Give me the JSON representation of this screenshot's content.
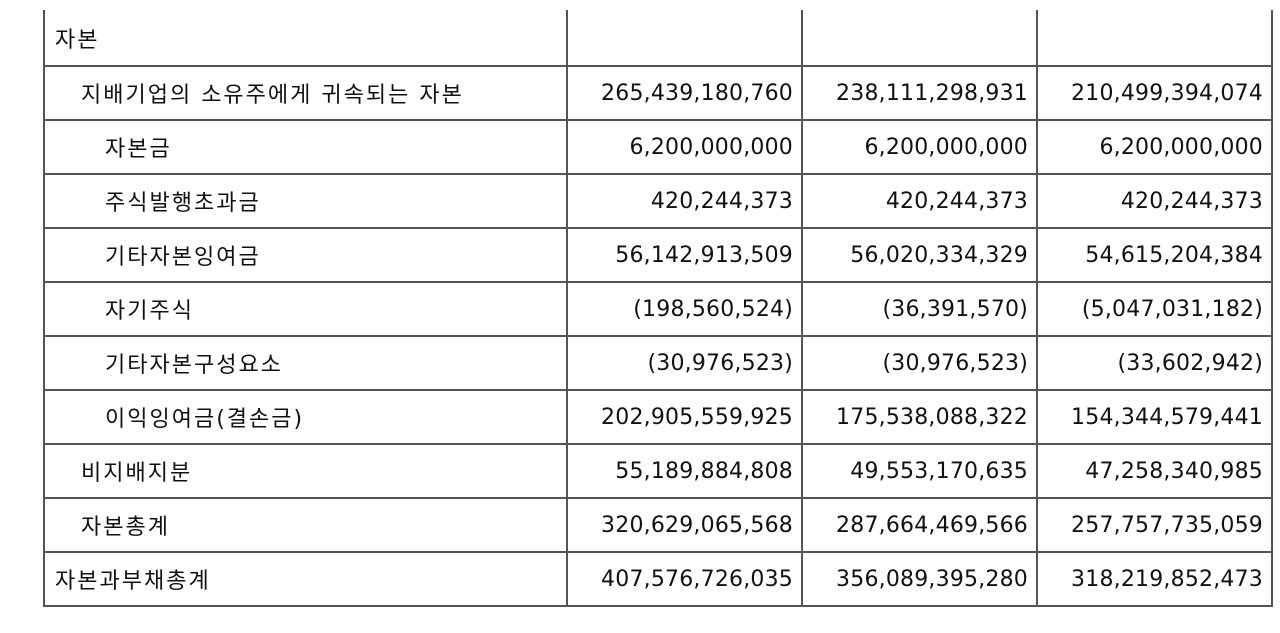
{
  "table": {
    "rows": [
      {
        "label": "자본",
        "indent": 0,
        "values": [
          "",
          "",
          ""
        ]
      },
      {
        "label": "지배기업의 소유주에게 귀속되는 자본",
        "indent": 1,
        "values": [
          "265,439,180,760",
          "238,111,298,931",
          "210,499,394,074"
        ]
      },
      {
        "label": "자본금",
        "indent": 2,
        "values": [
          "6,200,000,000",
          "6,200,000,000",
          "6,200,000,000"
        ]
      },
      {
        "label": "주식발행초과금",
        "indent": 2,
        "values": [
          "420,244,373",
          "420,244,373",
          "420,244,373"
        ]
      },
      {
        "label": "기타자본잉여금",
        "indent": 2,
        "values": [
          "56,142,913,509",
          "56,020,334,329",
          "54,615,204,384"
        ]
      },
      {
        "label": "자기주식",
        "indent": 2,
        "values": [
          "(198,560,524)",
          "(36,391,570)",
          "(5,047,031,182)"
        ]
      },
      {
        "label": "기타자본구성요소",
        "indent": 2,
        "values": [
          "(30,976,523)",
          "(30,976,523)",
          "(33,602,942)"
        ]
      },
      {
        "label": "이익잉여금(결손금)",
        "indent": 2,
        "values": [
          "202,905,559,925",
          "175,538,088,322",
          "154,344,579,441"
        ]
      },
      {
        "label": "비지배지분",
        "indent": 1,
        "values": [
          "55,189,884,808",
          "49,553,170,635",
          "47,258,340,985"
        ]
      },
      {
        "label": "자본총계",
        "indent": 1,
        "values": [
          "320,629,065,568",
          "287,664,469,566",
          "257,757,735,059"
        ]
      },
      {
        "label": "자본과부채총계",
        "indent": 0,
        "values": [
          "407,576,726,035",
          "356,089,395,280",
          "318,219,852,473"
        ]
      }
    ]
  }
}
